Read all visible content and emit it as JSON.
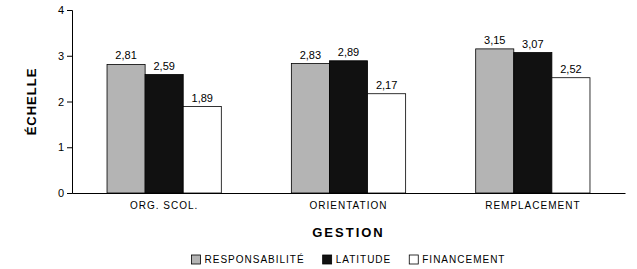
{
  "chart_data": {
    "type": "bar",
    "categories": [
      "ORG. SCOL.",
      "ORIENTATION",
      "REMPLACEMENT"
    ],
    "series": [
      {
        "name": "RESPONSABILITÉ",
        "color": "#b4b4b4",
        "values": [
          2.81,
          2.83,
          3.15
        ],
        "value_labels": [
          "2,81",
          "2,83",
          "3,15"
        ]
      },
      {
        "name": "LATITUDE",
        "color": "#111111",
        "values": [
          2.59,
          2.89,
          3.07
        ],
        "value_labels": [
          "2,59",
          "2,89",
          "3,07"
        ]
      },
      {
        "name": "FINANCEMENT",
        "color": "#ffffff",
        "values": [
          1.89,
          2.17,
          2.52
        ],
        "value_labels": [
          "1,89",
          "2,17",
          "2,52"
        ]
      }
    ],
    "x_label": "GESTION",
    "y_label": "ÉCHELLE",
    "ylim": [
      0,
      4
    ],
    "yticks": [
      0,
      1,
      2,
      3,
      4
    ],
    "grid": false,
    "legend": "bottom",
    "data_labels": true
  }
}
